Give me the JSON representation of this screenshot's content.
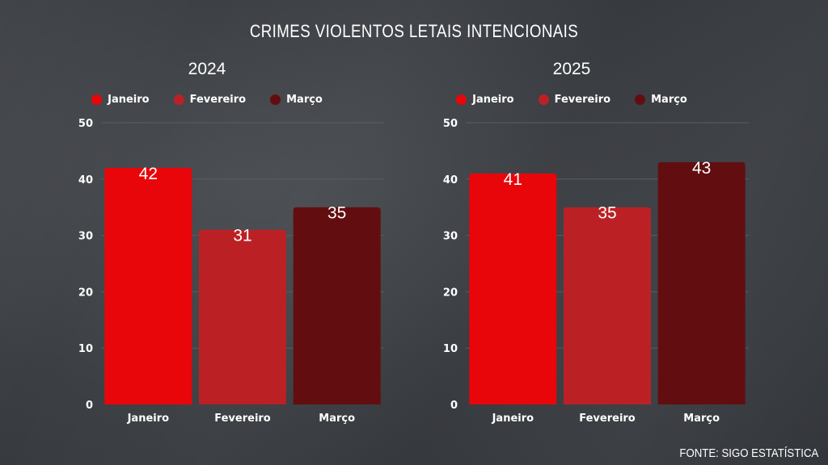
{
  "title": "CRIMES VIOLENTOS LETAIS INTENCIONAIS",
  "source": "FONTE: SIGO ESTATÍSTICA",
  "colors": {
    "janeiro": "#e8060a",
    "fevereiro": "#bb2124",
    "marco": "#620e10",
    "grid": "#5a5d62",
    "text": "#ffffff"
  },
  "chart_data": [
    {
      "type": "bar",
      "title": "2024",
      "categories": [
        "Janeiro",
        "Fevereiro",
        "Março"
      ],
      "values": [
        42,
        31,
        35
      ],
      "legend": [
        "Janeiro",
        "Fevereiro",
        "Março"
      ],
      "ylim": [
        0,
        50
      ],
      "yticks": [
        0,
        10,
        20,
        30,
        40,
        50
      ],
      "grid": true,
      "legend_position": "top"
    },
    {
      "type": "bar",
      "title": "2025",
      "categories": [
        "Janeiro",
        "Fevereiro",
        "Março"
      ],
      "values": [
        41,
        35,
        43
      ],
      "legend": [
        "Janeiro",
        "Fevereiro",
        "Março"
      ],
      "ylim": [
        0,
        50
      ],
      "yticks": [
        0,
        10,
        20,
        30,
        40,
        50
      ],
      "grid": true,
      "legend_position": "top"
    }
  ]
}
